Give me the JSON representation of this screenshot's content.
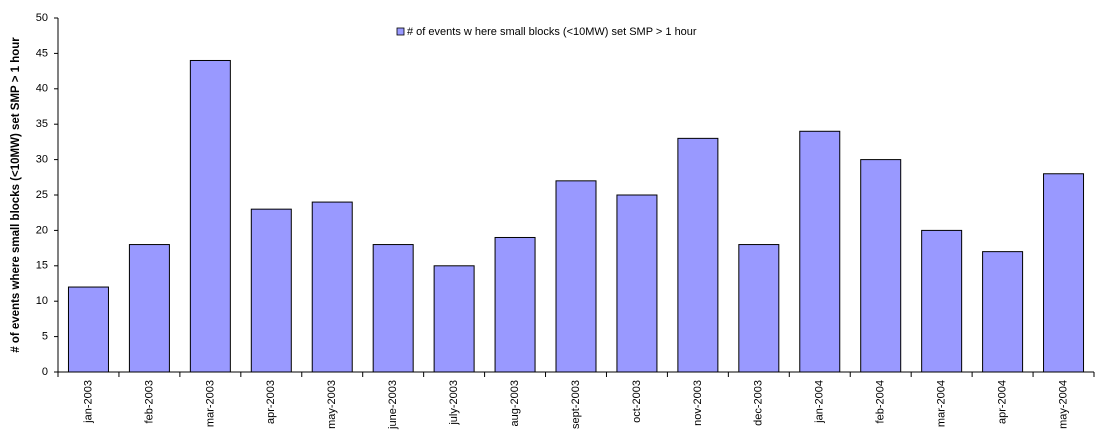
{
  "chart_data": {
    "type": "bar",
    "legend_label": "# of events w here small blocks (<10MW) set SMP > 1 hour",
    "y_label": "# of events where small blocks (<10MW) set SMP > 1 hour",
    "categories": [
      "jan-2003",
      "feb-2003",
      "mar-2003",
      "apr-2003",
      "may-2003",
      "june-2003",
      "july-2003",
      "aug-2003",
      "sept-2003",
      "oct-2003",
      "nov-2003",
      "dec-2003",
      "jan-2004",
      "feb-2004",
      "mar-2004",
      "apr-2004",
      "may-2004"
    ],
    "values": [
      12,
      18,
      44,
      23,
      24,
      18,
      15,
      19,
      27,
      25,
      33,
      18,
      34,
      30,
      20,
      17,
      28
    ],
    "color": "#9999ff",
    "ylim": [
      0,
      50
    ],
    "yticks": [
      0,
      5,
      10,
      15,
      20,
      25,
      30,
      35,
      40,
      45,
      50
    ],
    "grid": false,
    "legend": "top"
  }
}
